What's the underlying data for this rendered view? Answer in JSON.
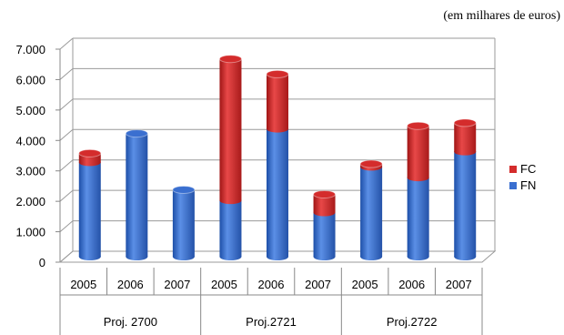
{
  "unit_note": "(em milhares de euros)",
  "chart_data": {
    "type": "bar",
    "stacked": true,
    "three_d": true,
    "categories": [
      "2005",
      "2006",
      "2007",
      "2005",
      "2006",
      "2007",
      "2005",
      "2006",
      "2007"
    ],
    "groups": [
      {
        "label": "Proj. 2700",
        "categories": [
          "2005",
          "2006",
          "2007"
        ]
      },
      {
        "label": "Proj.2721",
        "categories": [
          "2005",
          "2006",
          "2007"
        ]
      },
      {
        "label": "Proj.2722",
        "categories": [
          "2005",
          "2006",
          "2007"
        ]
      }
    ],
    "series": [
      {
        "name": "FN",
        "color": "#3a6fd0",
        "values": [
          3100,
          4050,
          2200,
          1850,
          4200,
          1450,
          2950,
          2600,
          3450
        ]
      },
      {
        "name": "FC",
        "color": "#d42c2c",
        "values": [
          300,
          0,
          0,
          4650,
          1800,
          600,
          100,
          1700,
          950
        ]
      }
    ],
    "y_ticks": [
      "0",
      "1.000",
      "2.000",
      "3.000",
      "4.000",
      "5.000",
      "6.000",
      "7.000"
    ],
    "ylim": [
      0,
      7000
    ],
    "grid": true,
    "legend_position": "right"
  }
}
